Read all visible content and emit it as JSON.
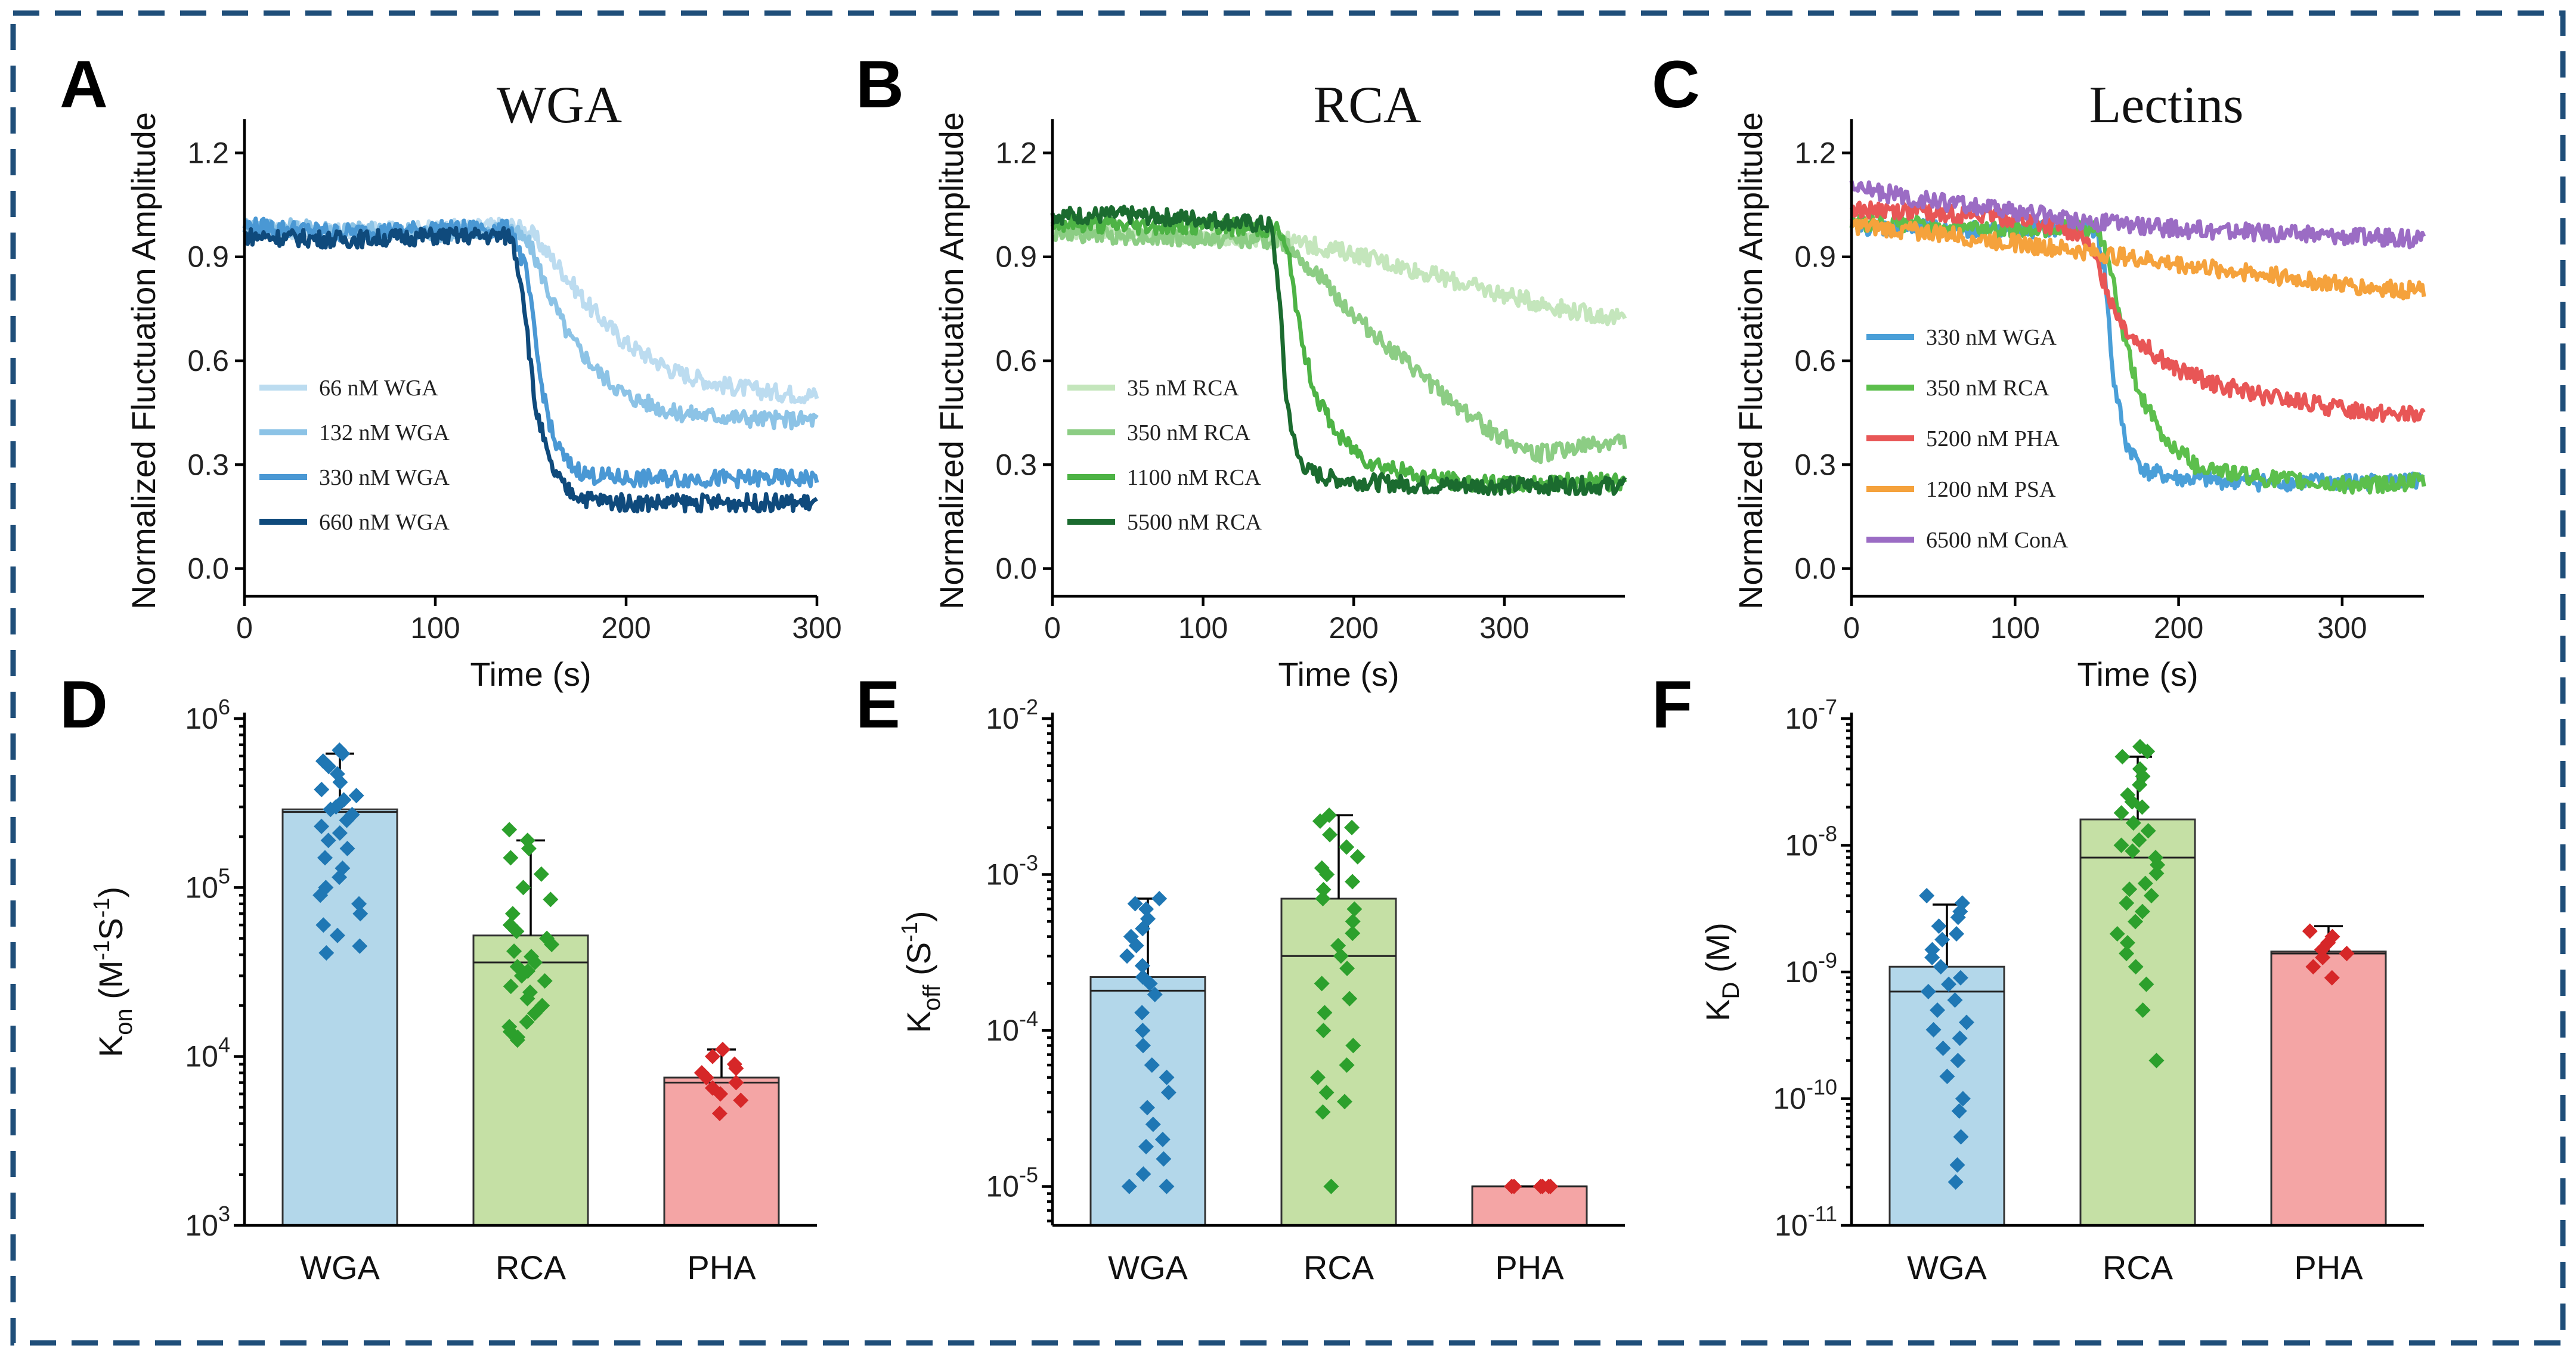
{
  "figure": {
    "panel_letters": [
      "A",
      "B",
      "C",
      "D",
      "E",
      "F"
    ]
  },
  "chart_data": [
    {
      "panel": "A",
      "type": "line",
      "title": "WGA",
      "xlabel": "Time (s)",
      "ylabel": "Normalized Fluctuation Amplitude",
      "xlim": [
        0,
        300
      ],
      "ylim": [
        -0.08,
        1.28
      ],
      "xticks": [
        0,
        100,
        200,
        300
      ],
      "yticks": [
        0.0,
        0.3,
        0.6,
        0.9,
        1.2
      ],
      "legend_position": "lower-left",
      "series": [
        {
          "name": "66 nM WGA",
          "color": "#bcdcf0",
          "x": [
            0,
            50,
            100,
            140,
            150,
            165,
            180,
            200,
            225,
            250,
            275,
            300
          ],
          "y": [
            0.98,
            0.97,
            0.98,
            0.99,
            0.97,
            0.87,
            0.76,
            0.65,
            0.57,
            0.53,
            0.51,
            0.5
          ]
        },
        {
          "name": "132 nM WGA",
          "color": "#8cc3e6",
          "x": [
            0,
            50,
            100,
            140,
            150,
            160,
            170,
            185,
            200,
            225,
            250,
            275,
            300
          ],
          "y": [
            0.99,
            0.98,
            0.97,
            0.98,
            0.93,
            0.79,
            0.67,
            0.57,
            0.5,
            0.45,
            0.44,
            0.43,
            0.43
          ]
        },
        {
          "name": "330 nM WGA",
          "color": "#4a98d4",
          "x": [
            0,
            50,
            100,
            140,
            148,
            155,
            162,
            170,
            180,
            200,
            250,
            300
          ],
          "y": [
            0.99,
            0.97,
            0.98,
            0.98,
            0.85,
            0.55,
            0.37,
            0.3,
            0.27,
            0.26,
            0.26,
            0.26
          ]
        },
        {
          "name": "660 nM WGA",
          "color": "#0f4a7c",
          "x": [
            0,
            50,
            100,
            140,
            146,
            152,
            160,
            168,
            180,
            200,
            250,
            300
          ],
          "y": [
            0.96,
            0.95,
            0.96,
            0.96,
            0.8,
            0.48,
            0.3,
            0.23,
            0.2,
            0.19,
            0.19,
            0.19
          ]
        }
      ]
    },
    {
      "panel": "B",
      "type": "line",
      "title": "RCA",
      "xlabel": "Time (s)",
      "ylabel": "Normalized Fluctuation Amplitude",
      "xlim": [
        0,
        380
      ],
      "ylim": [
        -0.08,
        1.28
      ],
      "xticks": [
        0,
        100,
        200,
        300
      ],
      "yticks": [
        0.0,
        0.3,
        0.6,
        0.9,
        1.2
      ],
      "legend_position": "lower-left",
      "series": [
        {
          "name": "35 nM RCA",
          "color": "#c4e6bc",
          "x": [
            0,
            50,
            100,
            150,
            200,
            250,
            300,
            350,
            380
          ],
          "y": [
            0.98,
            0.97,
            0.96,
            0.95,
            0.91,
            0.85,
            0.79,
            0.74,
            0.72
          ]
        },
        {
          "name": "350 nM RCA",
          "color": "#8ccd84",
          "x": [
            0,
            50,
            100,
            150,
            160,
            180,
            200,
            230,
            260,
            290,
            320,
            350,
            380
          ],
          "y": [
            0.97,
            0.96,
            0.95,
            0.95,
            0.92,
            0.83,
            0.73,
            0.61,
            0.5,
            0.4,
            0.33,
            0.35,
            0.37
          ]
        },
        {
          "name": "1100 nM RCA",
          "color": "#4db345",
          "x": [
            0,
            50,
            100,
            150,
            158,
            165,
            175,
            190,
            210,
            240,
            270,
            300,
            340,
            380
          ],
          "y": [
            1.0,
            0.99,
            0.99,
            0.98,
            0.88,
            0.66,
            0.5,
            0.38,
            0.31,
            0.27,
            0.25,
            0.24,
            0.25,
            0.25
          ]
        },
        {
          "name": "5500 nM RCA",
          "color": "#1b6b2f",
          "x": [
            0,
            50,
            100,
            145,
            150,
            155,
            162,
            170,
            185,
            210,
            250,
            300,
            340,
            380
          ],
          "y": [
            1.02,
            1.02,
            1.01,
            0.99,
            0.82,
            0.5,
            0.33,
            0.28,
            0.26,
            0.25,
            0.24,
            0.24,
            0.24,
            0.24
          ]
        }
      ]
    },
    {
      "panel": "C",
      "type": "line",
      "title": "Lectins",
      "xlabel": "Time (s)",
      "ylabel": "Normalized Fluctuation Amplitude",
      "xlim": [
        0,
        350
      ],
      "ylim": [
        -0.08,
        1.28
      ],
      "xticks": [
        0,
        100,
        200,
        300
      ],
      "yticks": [
        0.0,
        0.3,
        0.6,
        0.9,
        1.2
      ],
      "legend_position": "lower-left",
      "series": [
        {
          "name": "330 nM WGA",
          "color": "#4a9fd8",
          "x": [
            0,
            50,
            100,
            150,
            155,
            160,
            168,
            180,
            200,
            250,
            300,
            350
          ],
          "y": [
            0.99,
            0.98,
            0.98,
            0.98,
            0.85,
            0.55,
            0.36,
            0.28,
            0.26,
            0.25,
            0.25,
            0.25
          ]
        },
        {
          "name": "350 nM RCA",
          "color": "#5cbf4c",
          "x": [
            0,
            50,
            100,
            150,
            158,
            165,
            175,
            190,
            210,
            250,
            300,
            350
          ],
          "y": [
            1.0,
            0.99,
            0.98,
            0.98,
            0.88,
            0.7,
            0.52,
            0.38,
            0.3,
            0.26,
            0.24,
            0.25
          ]
        },
        {
          "name": "5200 nM PHA",
          "color": "#e85656",
          "x": [
            0,
            50,
            100,
            140,
            150,
            160,
            170,
            185,
            200,
            225,
            250,
            275,
            300,
            325,
            350
          ],
          "y": [
            1.04,
            1.03,
            1.01,
            0.97,
            0.88,
            0.76,
            0.68,
            0.62,
            0.57,
            0.53,
            0.5,
            0.48,
            0.46,
            0.45,
            0.44
          ]
        },
        {
          "name": "1200 nM PSA",
          "color": "#f5a23c",
          "x": [
            0,
            50,
            100,
            150,
            200,
            250,
            300,
            350
          ],
          "y": [
            0.99,
            0.97,
            0.94,
            0.91,
            0.88,
            0.85,
            0.82,
            0.8
          ]
        },
        {
          "name": "6500 nM ConA",
          "color": "#9b6cc4",
          "x": [
            0,
            50,
            100,
            150,
            200,
            250,
            300,
            350
          ],
          "y": [
            1.1,
            1.06,
            1.03,
            1.0,
            0.98,
            0.97,
            0.96,
            0.95
          ]
        }
      ]
    },
    {
      "panel": "D",
      "type": "bar",
      "scale": "log",
      "ylabel_main": "K",
      "ylabel_sub": "on",
      "ylabel_rest": " (M",
      "ylabel_sup1": "-1",
      "ylabel_mid": "S",
      "ylabel_sup2": "-1",
      "ylabel_end": ")",
      "ylim_exp": [
        3,
        6
      ],
      "ytick_exponents": [
        3,
        4,
        5,
        6
      ],
      "categories": [
        "WGA",
        "RCA",
        "PHA"
      ],
      "bar_colors": [
        "#b3d7ea",
        "#c5e0a5",
        "#f4a5a5"
      ],
      "point_colors": [
        "#1f77b4",
        "#2ca02c",
        "#d62728"
      ],
      "means": [
        290000,
        52000,
        7500
      ],
      "medians": [
        280000,
        36000,
        7000
      ],
      "errors_up": [
        620000,
        190000,
        11000
      ],
      "points": [
        [
          650000,
          620000,
          560000,
          520000,
          470000,
          420000,
          380000,
          350000,
          330000,
          300000,
          290000,
          270000,
          250000,
          230000,
          210000,
          190000,
          170000,
          150000,
          130000,
          115000,
          100000,
          90000,
          80000,
          70000,
          60000,
          52000,
          45000,
          41000
        ],
        [
          220000,
          190000,
          170000,
          150000,
          120000,
          100000,
          85000,
          70000,
          60000,
          55000,
          50000,
          46000,
          42000,
          39000,
          36000,
          34000,
          32000,
          30000,
          28000,
          26000,
          24000,
          22000,
          20000,
          18000,
          16000,
          15000,
          14000,
          13000,
          12500
        ],
        [
          11000,
          10000,
          9000,
          8500,
          8000,
          7500,
          7000,
          6500,
          6000,
          5500,
          4600
        ]
      ]
    },
    {
      "panel": "E",
      "type": "bar",
      "scale": "log",
      "ylabel_main": "K",
      "ylabel_sub": "off",
      "ylabel_rest": " (S",
      "ylabel_sup1": "-1",
      "ylabel_mid": "",
      "ylabel_sup2": "",
      "ylabel_end": ")",
      "ylim_exp": [
        -5.25,
        -2
      ],
      "ytick_exponents": [
        -5,
        -4,
        -3,
        -2
      ],
      "categories": [
        "WGA",
        "RCA",
        "PHA"
      ],
      "bar_colors": [
        "#b3d7ea",
        "#c5e0a5",
        "#f4a5a5"
      ],
      "point_colors": [
        "#1f77b4",
        "#2ca02c",
        "#d62728"
      ],
      "means": [
        0.00022,
        0.0007,
        1e-05
      ],
      "medians": [
        0.00018,
        0.0003,
        1e-05
      ],
      "errors_up": [
        0.0007,
        0.0024,
        1e-05
      ],
      "points": [
        [
          0.0007,
          0.00065,
          0.0006,
          0.00052,
          0.00045,
          0.0004,
          0.00035,
          0.0003,
          0.00026,
          0.00022,
          0.0002,
          0.00017,
          0.00013,
          0.0001,
          8e-05,
          6e-05,
          5e-05,
          4e-05,
          3.2e-05,
          2.5e-05,
          2e-05,
          1.8e-05,
          1.5e-05,
          1.2e-05,
          1e-05,
          1e-05
        ],
        [
          0.0024,
          0.0022,
          0.002,
          0.0018,
          0.0015,
          0.0013,
          0.0011,
          0.001,
          0.0009,
          0.0008,
          0.0007,
          0.0006,
          0.0005,
          0.00042,
          0.00035,
          0.0003,
          0.00025,
          0.0002,
          0.00016,
          0.00013,
          0.0001,
          8e-05,
          6e-05,
          5e-05,
          4e-05,
          3.5e-05,
          3e-05,
          1e-05
        ],
        [
          1e-05,
          1e-05,
          1e-05,
          1e-05,
          1e-05,
          1e-05
        ]
      ]
    },
    {
      "panel": "F",
      "type": "bar",
      "scale": "log",
      "ylabel_main": "K",
      "ylabel_sub": "D",
      "ylabel_rest": " (M)",
      "ylabel_sup1": "",
      "ylabel_mid": "",
      "ylabel_sup2": "",
      "ylabel_end": "",
      "ylim_exp": [
        -11,
        -7
      ],
      "ytick_exponents": [
        -11,
        -10,
        -9,
        -8,
        -7
      ],
      "categories": [
        "WGA",
        "RCA",
        "PHA"
      ],
      "bar_colors": [
        "#b3d7ea",
        "#c5e0a5",
        "#f4a5a5"
      ],
      "point_colors": [
        "#1f77b4",
        "#2ca02c",
        "#d62728"
      ],
      "means": [
        1.1e-09,
        1.6e-08,
        1.45e-09
      ],
      "medians": [
        7e-10,
        8e-09,
        1.4e-09
      ],
      "errors_up": [
        3.4e-09,
        5e-08,
        2.3e-09
      ],
      "points": [
        [
          4e-09,
          3.5e-09,
          3e-09,
          2.7e-09,
          2.3e-09,
          2e-09,
          1.8e-09,
          1.5e-09,
          1.3e-09,
          1.1e-09,
          9e-10,
          8e-10,
          7e-10,
          6e-10,
          5e-10,
          4e-10,
          3.5e-10,
          3e-10,
          2.5e-10,
          2e-10,
          1.5e-10,
          1e-10,
          8e-11,
          5e-11,
          3e-11,
          2.2e-11
        ],
        [
          6e-08,
          5.5e-08,
          5e-08,
          4e-08,
          3.5e-08,
          3e-08,
          2.5e-08,
          2.2e-08,
          2e-08,
          1.8e-08,
          1.5e-08,
          1.3e-08,
          1.1e-08,
          1e-08,
          9e-09,
          8e-09,
          7e-09,
          6e-09,
          5e-09,
          4.5e-09,
          4e-09,
          3.5e-09,
          3e-09,
          2.5e-09,
          2e-09,
          1.7e-09,
          1.4e-09,
          1.1e-09,
          8e-10,
          5e-10,
          2e-10
        ],
        [
          2.1e-09,
          1.9e-09,
          1.7e-09,
          1.5e-09,
          1.4e-09,
          1.3e-09,
          1.1e-09,
          9e-10
        ]
      ]
    }
  ]
}
